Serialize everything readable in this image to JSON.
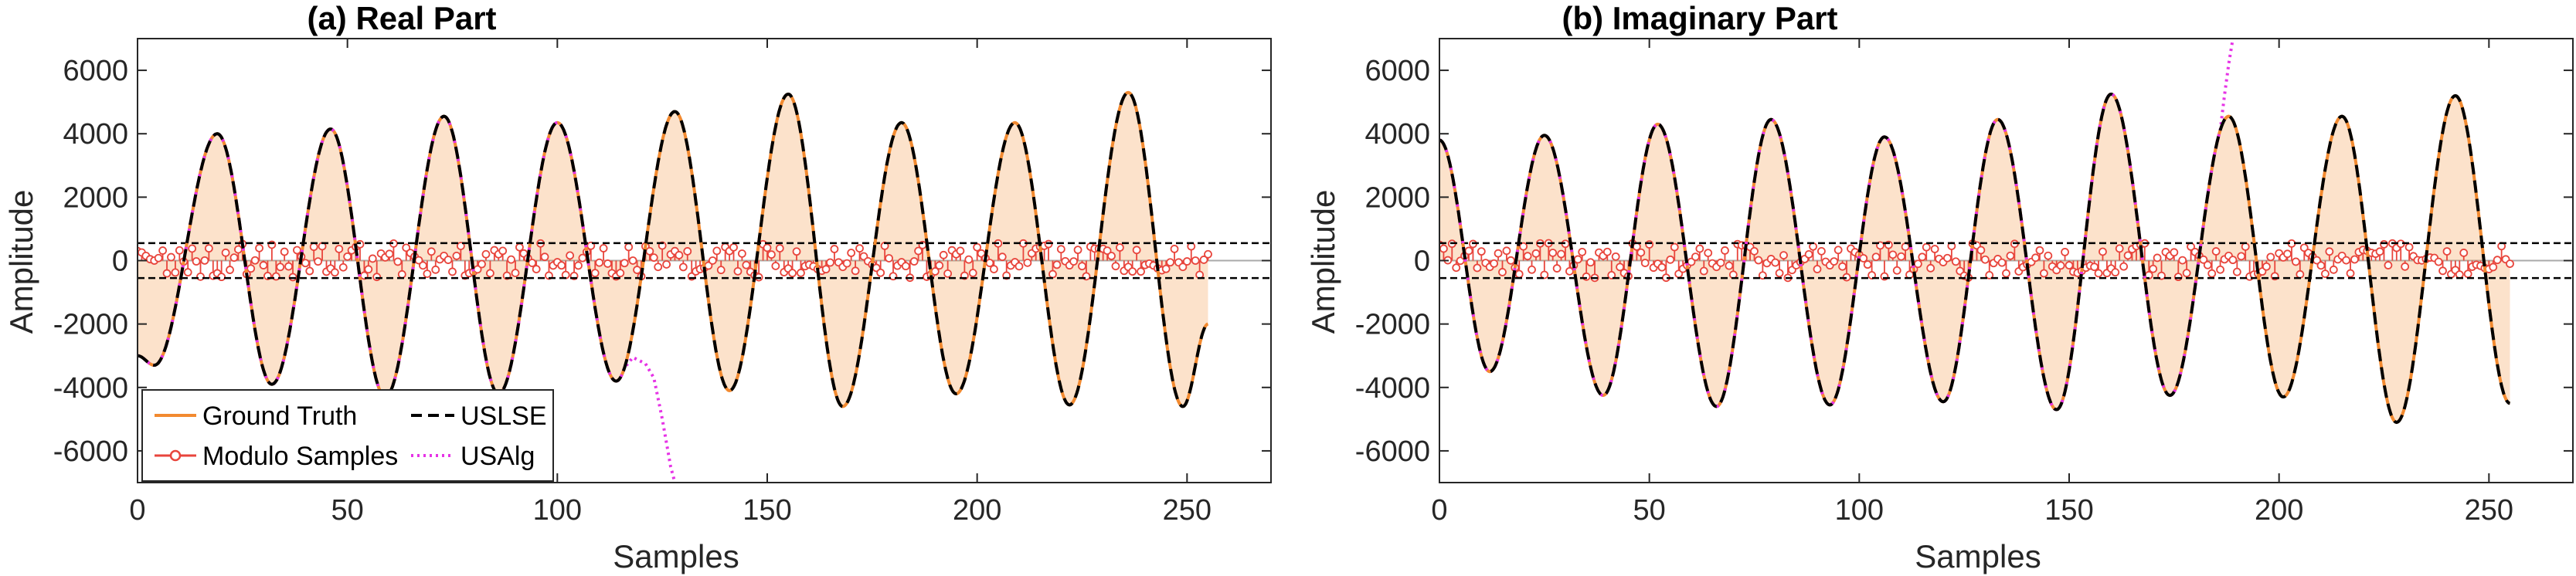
{
  "chart_data": [
    {
      "type": "line",
      "title": "(a) Real Part",
      "xlabel": "Samples",
      "ylabel": "Amplitude",
      "xlim": [
        0,
        270
      ],
      "ylim": [
        -7000,
        7000
      ],
      "xticks": [
        0,
        50,
        100,
        150,
        200,
        250
      ],
      "yticks": [
        -6000,
        -4000,
        -2000,
        0,
        2000,
        4000,
        6000
      ],
      "threshold": 550,
      "n_samples": 256,
      "sine_start": -3000,
      "sine_extrema": [
        {
          "x": 4,
          "y": -3300
        },
        {
          "x": 19,
          "y": 4000
        },
        {
          "x": 32,
          "y": -3900
        },
        {
          "x": 46,
          "y": 4150
        },
        {
          "x": 59,
          "y": -4300
        },
        {
          "x": 73,
          "y": 4550
        },
        {
          "x": 86,
          "y": -4200
        },
        {
          "x": 100,
          "y": 4350
        },
        {
          "x": 114,
          "y": -3800
        },
        {
          "x": 128,
          "y": 4700
        },
        {
          "x": 141,
          "y": -4100
        },
        {
          "x": 155,
          "y": 5250
        },
        {
          "x": 168,
          "y": -4600
        },
        {
          "x": 182,
          "y": 4350
        },
        {
          "x": 195,
          "y": -4200
        },
        {
          "x": 209,
          "y": 4350
        },
        {
          "x": 222,
          "y": -4550
        },
        {
          "x": 236,
          "y": 5300
        },
        {
          "x": 249,
          "y": -4600
        }
      ],
      "sine_end": -2000,
      "usalg_break_x": 116,
      "usalg_tail": [
        {
          "x": 118,
          "y": -3050
        },
        {
          "x": 121,
          "y": -3250
        },
        {
          "x": 123,
          "y": -3700
        },
        {
          "x": 125,
          "y": -5000
        },
        {
          "x": 127,
          "y": -6500
        },
        {
          "x": 128,
          "y": -7000
        }
      ],
      "series": [
        {
          "name": "Ground Truth",
          "color": "#f28a30"
        },
        {
          "name": "Modulo Samples",
          "color": "#e8453c"
        },
        {
          "name": "USLSE",
          "color": "#000000"
        },
        {
          "name": "USAlg",
          "color": "#e633e6"
        }
      ],
      "legend": "bottom-left"
    },
    {
      "type": "line",
      "title": "(b) Imaginary Part",
      "xlabel": "Samples",
      "ylabel": "Amplitude",
      "xlim": [
        0,
        270
      ],
      "ylim": [
        -7000,
        7000
      ],
      "xticks": [
        0,
        50,
        100,
        150,
        200,
        250
      ],
      "yticks": [
        -6000,
        -4000,
        -2000,
        0,
        2000,
        4000,
        6000
      ],
      "threshold": 550,
      "n_samples": 256,
      "sine_start": 3800,
      "sine_extrema": [
        {
          "x": 12,
          "y": -3500
        },
        {
          "x": 25,
          "y": 3950
        },
        {
          "x": 39,
          "y": -4250
        },
        {
          "x": 52,
          "y": 4300
        },
        {
          "x": 66,
          "y": -4600
        },
        {
          "x": 79,
          "y": 4450
        },
        {
          "x": 93,
          "y": -4550
        },
        {
          "x": 106,
          "y": 3900
        },
        {
          "x": 120,
          "y": -4450
        },
        {
          "x": 133,
          "y": 4450
        },
        {
          "x": 147,
          "y": -4700
        },
        {
          "x": 160,
          "y": 5250
        },
        {
          "x": 174,
          "y": -4250
        },
        {
          "x": 188,
          "y": 4550
        },
        {
          "x": 201,
          "y": -4300
        },
        {
          "x": 215,
          "y": 4550
        },
        {
          "x": 228,
          "y": -5100
        },
        {
          "x": 242,
          "y": 5200
        }
      ],
      "sine_end": -4500,
      "usalg_break_x": 186,
      "usalg_tail": [
        {
          "x": 187,
          "y": 5200
        },
        {
          "x": 188,
          "y": 6200
        },
        {
          "x": 189,
          "y": 7000
        }
      ],
      "series": [
        {
          "name": "Ground Truth",
          "color": "#f28a30"
        },
        {
          "name": "Modulo Samples",
          "color": "#e8453c"
        },
        {
          "name": "USLSE",
          "color": "#000000"
        },
        {
          "name": "USAlg",
          "color": "#e633e6"
        }
      ]
    }
  ]
}
